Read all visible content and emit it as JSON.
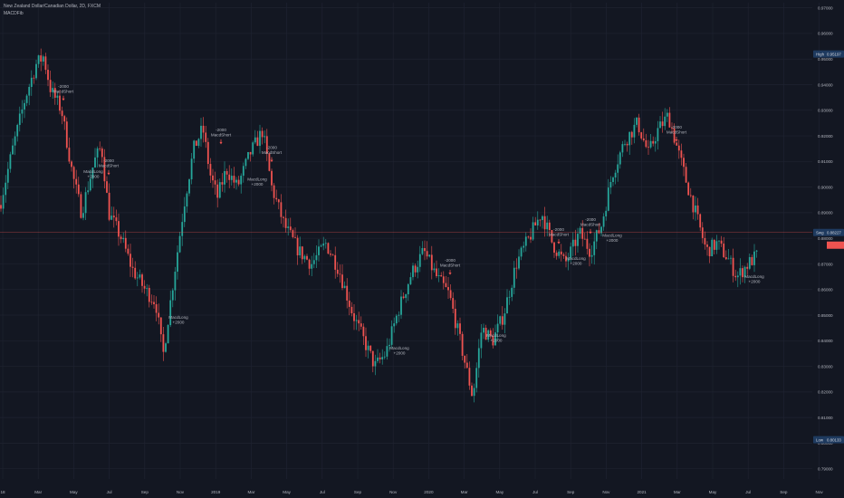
{
  "header": {
    "symbol_line": "New Zealand Dollar/Canadian Dollar, 2D, FXCM",
    "indicator": "MACDFib"
  },
  "chart_data": {
    "type": "candlestick",
    "title": "New Zealand Dollar/Canadian Dollar, 2D, FXCM",
    "ylim": [
      0.786,
      0.972
    ],
    "y_ticks": [
      "0.97000",
      "0.96000",
      "0.95000",
      "0.94000",
      "0.93000",
      "0.92000",
      "0.91000",
      "0.90000",
      "0.89000",
      "0.88000",
      "0.87000",
      "0.86000",
      "0.85000",
      "0.84000",
      "0.83000",
      "0.82000",
      "0.81000",
      "0.80000",
      "0.79000"
    ],
    "x_ticks": [
      "18",
      "Mar",
      "May",
      "Jul",
      "Sep",
      "Nov",
      "2019",
      "Mar",
      "May",
      "Jul",
      "Sep",
      "Nov",
      "2020",
      "Mar",
      "May",
      "Jul",
      "Sep",
      "Nov",
      "2021",
      "Mar",
      "May",
      "Jul",
      "Sep",
      "Nov"
    ],
    "price_path": [
      [
        0,
        0.893
      ],
      [
        14,
        0.915
      ],
      [
        28,
        0.935
      ],
      [
        40,
        0.948
      ],
      [
        48,
        0.951
      ],
      [
        56,
        0.938
      ],
      [
        68,
        0.93
      ],
      [
        80,
        0.905
      ],
      [
        90,
        0.89
      ],
      [
        104,
        0.91
      ],
      [
        112,
        0.916
      ],
      [
        120,
        0.89
      ],
      [
        134,
        0.88
      ],
      [
        146,
        0.868
      ],
      [
        160,
        0.86
      ],
      [
        172,
        0.855
      ],
      [
        180,
        0.834
      ],
      [
        192,
        0.865
      ],
      [
        204,
        0.895
      ],
      [
        214,
        0.915
      ],
      [
        224,
        0.923
      ],
      [
        232,
        0.905
      ],
      [
        240,
        0.896
      ],
      [
        250,
        0.907
      ],
      [
        262,
        0.9
      ],
      [
        276,
        0.913
      ],
      [
        290,
        0.922
      ],
      [
        300,
        0.9
      ],
      [
        314,
        0.885
      ],
      [
        330,
        0.875
      ],
      [
        344,
        0.87
      ],
      [
        360,
        0.878
      ],
      [
        374,
        0.868
      ],
      [
        390,
        0.85
      ],
      [
        402,
        0.84
      ],
      [
        414,
        0.83
      ],
      [
        426,
        0.835
      ],
      [
        440,
        0.852
      ],
      [
        454,
        0.866
      ],
      [
        468,
        0.875
      ],
      [
        482,
        0.865
      ],
      [
        496,
        0.858
      ],
      [
        508,
        0.84
      ],
      [
        522,
        0.818
      ],
      [
        532,
        0.845
      ],
      [
        544,
        0.84
      ],
      [
        556,
        0.85
      ],
      [
        570,
        0.87
      ],
      [
        584,
        0.88
      ],
      [
        598,
        0.89
      ],
      [
        610,
        0.878
      ],
      [
        624,
        0.87
      ],
      [
        640,
        0.882
      ],
      [
        652,
        0.875
      ],
      [
        664,
        0.885
      ],
      [
        676,
        0.905
      ],
      [
        690,
        0.918
      ],
      [
        704,
        0.925
      ],
      [
        716,
        0.913
      ],
      [
        726,
        0.922
      ],
      [
        738,
        0.928
      ],
      [
        748,
        0.915
      ],
      [
        758,
        0.902
      ],
      [
        768,
        0.89
      ],
      [
        780,
        0.875
      ],
      [
        792,
        0.878
      ],
      [
        804,
        0.872
      ],
      [
        814,
        0.865
      ],
      [
        826,
        0.87
      ],
      [
        838,
        0.874
      ]
    ],
    "high": {
      "label": "High",
      "value": "0.95197"
    },
    "last": {
      "label": "Swg",
      "value": "0.88227"
    },
    "low": {
      "label": "Low",
      "value": "0.80133"
    },
    "signals": [
      {
        "text": "-2000",
        "text2": "MacdShort",
        "x": 70,
        "price": 0.936,
        "dir": "down"
      },
      {
        "text": "MacdLong",
        "text2": "+2000",
        "x": 103,
        "price": 0.907,
        "dir": "up"
      },
      {
        "text": "-2000",
        "text2": "MacdShort",
        "x": 120,
        "price": 0.907,
        "dir": "down"
      },
      {
        "text": "MacdLong",
        "text2": "+2000",
        "x": 197,
        "price": 0.85,
        "dir": "up"
      },
      {
        "text": "-2000",
        "text2": "MacdShort",
        "x": 244,
        "price": 0.919,
        "dir": "down"
      },
      {
        "text": "MacdLong",
        "text2": "+2000",
        "x": 284,
        "price": 0.904,
        "dir": "up"
      },
      {
        "text": "-2000",
        "text2": "MacdShort",
        "x": 300,
        "price": 0.912,
        "dir": "down"
      },
      {
        "text": "MacdLong",
        "text2": "+2000",
        "x": 441,
        "price": 0.838,
        "dir": "up"
      },
      {
        "text": "-2000",
        "text2": "MacdShort",
        "x": 497,
        "price": 0.868,
        "dir": "down"
      },
      {
        "text": "MacdLong",
        "text2": "+2000",
        "x": 548,
        "price": 0.843,
        "dir": "up"
      },
      {
        "text": "-2000",
        "text2": "MacdShort",
        "x": 617,
        "price": 0.88,
        "dir": "down"
      },
      {
        "text": "MacdLong",
        "text2": "+2000",
        "x": 636,
        "price": 0.873,
        "dir": "up"
      },
      {
        "text": "-2000",
        "text2": "MacdShort",
        "x": 652,
        "price": 0.884,
        "dir": "down"
      },
      {
        "text": "MacdLong",
        "text2": "+2000",
        "x": 676,
        "price": 0.882,
        "dir": "up"
      },
      {
        "text": "-2000",
        "text2": "MacdShort",
        "x": 747,
        "price": 0.92,
        "dir": "down"
      },
      {
        "text": "MacdLong",
        "text2": "+2000",
        "x": 833,
        "price": 0.866,
        "dir": "up"
      }
    ],
    "colors": {
      "up": "#26a69a",
      "down": "#ef5350",
      "background": "#131722",
      "grid": "#1f2330",
      "label": "#b2b5be",
      "last_line": "#ef5350"
    }
  }
}
